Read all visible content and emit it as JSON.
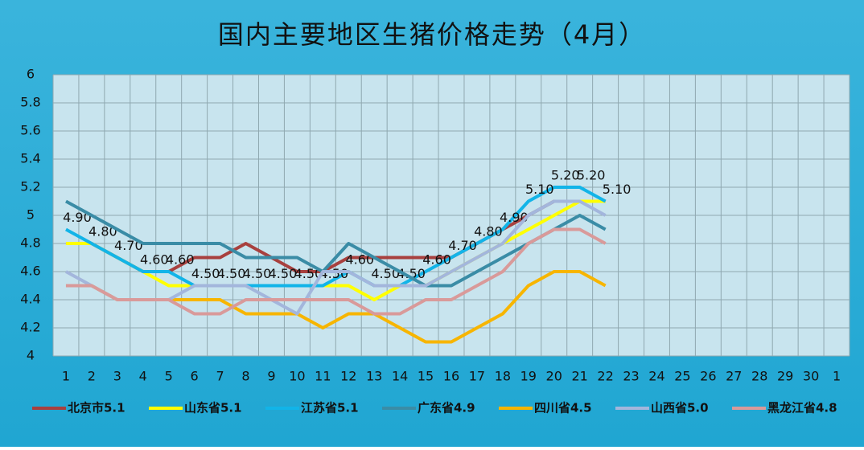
{
  "chart_data": {
    "type": "line",
    "title": "国内主要地区生猪价格走势（4月）",
    "categories": [
      "1",
      "2",
      "3",
      "4",
      "5",
      "6",
      "7",
      "8",
      "9",
      "10",
      "11",
      "12",
      "13",
      "14",
      "15",
      "16",
      "17",
      "18",
      "19",
      "20",
      "21",
      "22",
      "23",
      "24",
      "25",
      "26",
      "27",
      "28",
      "29",
      "30",
      "1"
    ],
    "ylim": [
      4,
      6
    ],
    "yticks": [
      4,
      4.2,
      4.4,
      4.6,
      4.8,
      5,
      5.2,
      5.4,
      5.6,
      5.8,
      6
    ],
    "grid": true,
    "legend": "bottom",
    "series": [
      {
        "name": "北京市5.1",
        "color": "#a8403e",
        "values": [
          4.8,
          4.8,
          4.7,
          4.6,
          4.6,
          4.7,
          4.7,
          4.8,
          4.7,
          4.6,
          4.6,
          4.7,
          4.7,
          4.7,
          4.7,
          4.7,
          4.8,
          4.9,
          5.0,
          5.1,
          5.1,
          5.1,
          null,
          null,
          null,
          null,
          null,
          null,
          null,
          null,
          null
        ]
      },
      {
        "name": "山东省5.1",
        "color": "#ffff00",
        "values": [
          4.8,
          4.8,
          4.7,
          4.6,
          4.5,
          4.5,
          4.5,
          4.5,
          4.5,
          4.5,
          4.5,
          4.5,
          4.4,
          4.5,
          4.5,
          4.6,
          4.7,
          4.8,
          4.9,
          5.0,
          5.1,
          5.1,
          null,
          null,
          null,
          null,
          null,
          null,
          null,
          null,
          null
        ]
      },
      {
        "name": "江苏省5.1",
        "color": "#12b4e8",
        "values": [
          4.9,
          4.8,
          4.7,
          4.6,
          4.6,
          4.5,
          4.5,
          4.5,
          4.5,
          4.5,
          4.5,
          4.6,
          4.5,
          4.5,
          4.6,
          4.7,
          4.8,
          4.9,
          5.1,
          5.2,
          5.2,
          5.1,
          null,
          null,
          null,
          null,
          null,
          null,
          null,
          null,
          null
        ],
        "value_labels": [
          "4.90",
          "4.80",
          "4.70",
          "4.60",
          "4.60",
          "4.50",
          "4.50",
          "4.50",
          "4.50",
          "4.50",
          "4.50",
          "4.60",
          "4.50",
          "4.50",
          "4.60",
          "4.70",
          "4.80",
          "4.90",
          "5.10",
          "5.20",
          "5.20",
          "5.10",
          null,
          null,
          null,
          null,
          null,
          null,
          null,
          null,
          null
        ]
      },
      {
        "name": "广东省4.9",
        "color": "#3a8ca6",
        "values": [
          5.1,
          5.0,
          4.9,
          4.8,
          4.8,
          4.8,
          4.8,
          4.7,
          4.7,
          4.7,
          4.6,
          4.8,
          4.7,
          4.6,
          4.5,
          4.5,
          4.6,
          4.7,
          4.8,
          4.9,
          5.0,
          4.9,
          null,
          null,
          null,
          null,
          null,
          null,
          null,
          null,
          null
        ]
      },
      {
        "name": "四川省4.5",
        "color": "#f7b500",
        "values": [
          4.5,
          4.5,
          4.4,
          4.4,
          4.4,
          4.4,
          4.4,
          4.3,
          4.3,
          4.3,
          4.2,
          4.3,
          4.3,
          4.2,
          4.1,
          4.1,
          4.2,
          4.3,
          4.5,
          4.6,
          4.6,
          4.5,
          null,
          null,
          null,
          null,
          null,
          null,
          null,
          null,
          null
        ]
      },
      {
        "name": "山西省5.0",
        "color": "#a3b6dc",
        "values": [
          4.6,
          4.5,
          4.4,
          4.4,
          4.4,
          4.5,
          4.5,
          4.5,
          4.4,
          4.3,
          4.6,
          4.6,
          4.5,
          4.5,
          4.5,
          4.6,
          4.7,
          4.8,
          5.0,
          5.1,
          5.1,
          5.0,
          null,
          null,
          null,
          null,
          null,
          null,
          null,
          null,
          null
        ]
      },
      {
        "name": "黑龙江省4.8",
        "color": "#d99a9a",
        "values": [
          4.5,
          4.5,
          4.4,
          4.4,
          4.4,
          4.3,
          4.3,
          4.4,
          4.4,
          4.4,
          4.4,
          4.4,
          4.3,
          4.3,
          4.4,
          4.4,
          4.5,
          4.6,
          4.8,
          4.9,
          4.9,
          4.8,
          null,
          null,
          null,
          null,
          null,
          null,
          null,
          null,
          null
        ]
      }
    ]
  }
}
